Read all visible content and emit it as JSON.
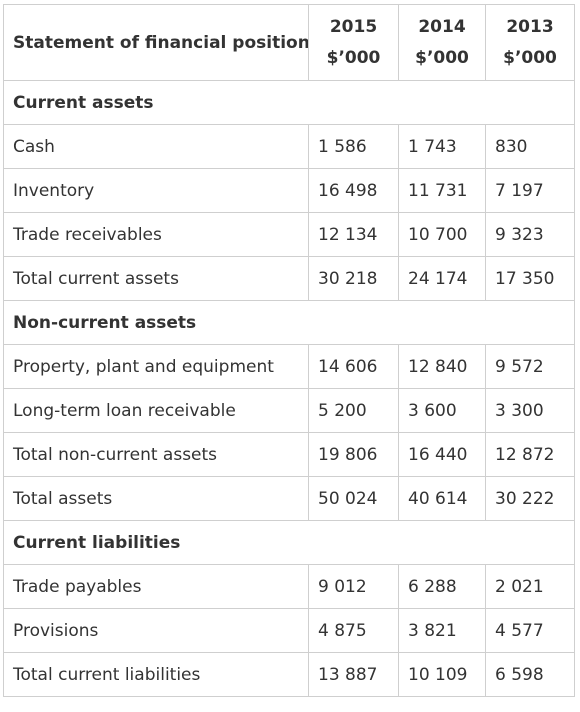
{
  "table": {
    "header": {
      "label": "Statement of financial position",
      "columns": [
        {
          "year": "2015",
          "unit": "$’000"
        },
        {
          "year": "2014",
          "unit": "$’000"
        },
        {
          "year": "2013",
          "unit": "$’000"
        }
      ]
    },
    "rows": [
      {
        "type": "section",
        "label": "Current assets"
      },
      {
        "type": "data",
        "label": "Cash",
        "values": [
          "1 586",
          "1 743",
          "830"
        ]
      },
      {
        "type": "data",
        "label": "Inventory",
        "values": [
          "16 498",
          "11 731",
          "7 197"
        ]
      },
      {
        "type": "data",
        "label": "Trade receivables",
        "values": [
          "12 134",
          "10 700",
          "9 323"
        ]
      },
      {
        "type": "data",
        "label": "Total current assets",
        "values": [
          "30 218",
          "24 174",
          "17 350"
        ]
      },
      {
        "type": "section",
        "label": "Non-current assets"
      },
      {
        "type": "data",
        "label": "Property, plant and equipment",
        "values": [
          "14 606",
          "12 840",
          "9 572"
        ]
      },
      {
        "type": "data",
        "label": "Long-term loan receivable",
        "values": [
          "5 200",
          "3 600",
          "3 300"
        ]
      },
      {
        "type": "data",
        "label": "Total non-current assets",
        "values": [
          "19 806",
          "16 440",
          "12 872"
        ]
      },
      {
        "type": "data",
        "label": "Total assets",
        "values": [
          "50 024",
          "40 614",
          "30 222"
        ]
      },
      {
        "type": "section",
        "label": "Current liabilities"
      },
      {
        "type": "data",
        "label": "Trade payables",
        "values": [
          "9 012",
          "6 288",
          "2 021"
        ]
      },
      {
        "type": "data",
        "label": "Provisions",
        "values": [
          "4 875",
          "3 821",
          "4 577"
        ]
      },
      {
        "type": "data",
        "label": "Total current liabilities",
        "values": [
          "13 887",
          "10 109",
          "6 598"
        ]
      }
    ]
  }
}
